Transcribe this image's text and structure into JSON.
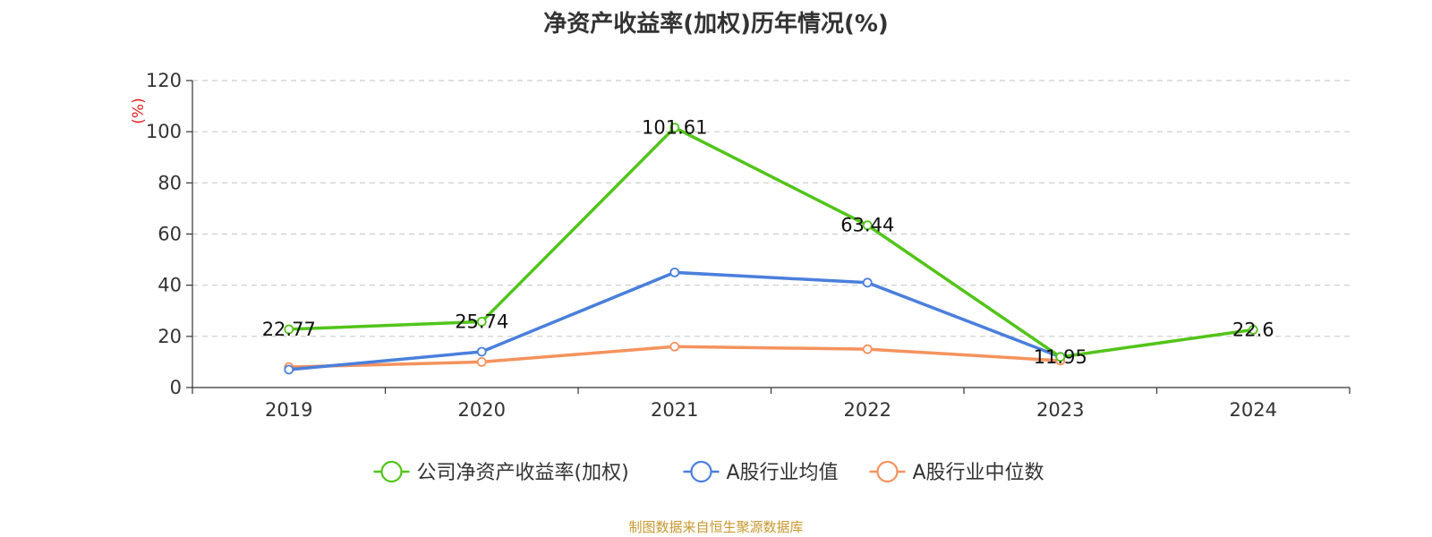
{
  "source_note": "制图数据来自恒生聚源数据库",
  "colors": {
    "source_text": "#c8982f",
    "axis": "#333333",
    "grid": "#cccccc",
    "unit_label": "#e02020"
  },
  "chart_data": {
    "type": "line",
    "title": "净资产收益率(加权)历年情况(%)",
    "ylabel": "(%)",
    "ylim": [
      0,
      120
    ],
    "yticks": [
      0,
      20,
      40,
      60,
      80,
      100,
      120
    ],
    "grid": true,
    "legend_position": "bottom",
    "categories": [
      "2019",
      "2020",
      "2021",
      "2022",
      "2023",
      "2024"
    ],
    "series": [
      {
        "name": "公司净资产收益率(加权)",
        "color": "#52c41a",
        "values": [
          22.77,
          25.74,
          101.61,
          63.44,
          11.95,
          22.6
        ],
        "labels": [
          "22.77",
          "25.74",
          "101.61",
          "63.44",
          "11.95",
          "22.6"
        ],
        "show_labels": true
      },
      {
        "name": "A股行业均值",
        "color": "#4a7fdc",
        "values": [
          7.0,
          14.0,
          45.0,
          41.0,
          12.0,
          null
        ],
        "show_labels": false
      },
      {
        "name": "A股行业中位数",
        "color": "#f5925e",
        "values": [
          8.0,
          10.0,
          16.0,
          15.0,
          10.5,
          null
        ],
        "show_labels": false
      }
    ]
  }
}
